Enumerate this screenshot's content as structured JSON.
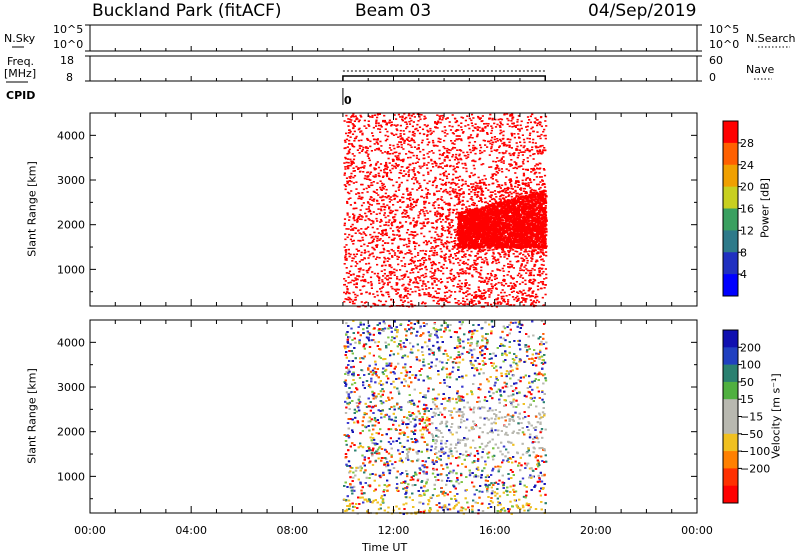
{
  "header": {
    "station": "Buckland Park (fitACF)",
    "beam": "Beam 03",
    "date": "04/Sep/2019"
  },
  "nsky": {
    "label": "N.Sky",
    "tick_top": "10^5",
    "tick_bottom": "10^0"
  },
  "nsearch": {
    "label": "N.Search",
    "tick_top": "10^5",
    "tick_bottom": "10^0"
  },
  "freq": {
    "label_line1": "Freq.",
    "label_line2": "[MHz]",
    "tick_top": "18",
    "tick_bottom": "8"
  },
  "nave": {
    "label": "Nave",
    "tick_top": "60",
    "tick_bottom": "0"
  },
  "cpid": {
    "label": "CPID",
    "value": "0"
  },
  "chart_data": [
    {
      "type": "heatmap",
      "name": "power",
      "ylabel": "Slant Range [km]",
      "yticks": [
        "1000",
        "2000",
        "3000",
        "4000"
      ],
      "ylim": [
        180,
        4500
      ],
      "xlim": [
        0,
        24
      ],
      "data_start_hour": 10,
      "data_end_hour": 18,
      "colorbar_label": "Power [dB]",
      "colorbar_ticks": [
        "4",
        "8",
        "12",
        "16",
        "20",
        "24",
        "28"
      ],
      "colorbar_colors": [
        "#0000ff",
        "#2030c0",
        "#2e7a8a",
        "#3aa060",
        "#c8d020",
        "#f0a000",
        "#ff6000",
        "#ff0000"
      ],
      "dominant_color": "#ff0000"
    },
    {
      "type": "heatmap",
      "name": "velocity",
      "ylabel": "Slant Range [km]",
      "yticks": [
        "1000",
        "2000",
        "3000",
        "4000"
      ],
      "ylim": [
        180,
        4500
      ],
      "xlim": [
        0,
        24
      ],
      "data_start_hour": 10,
      "data_end_hour": 18,
      "colorbar_label": "Velocity [m s⁻¹]",
      "colorbar_ticks": [
        "200",
        "100",
        "50",
        "15",
        "−15",
        "−50",
        "−100",
        "−200"
      ],
      "colorbar_colors": [
        "#1010b0",
        "#2040c0",
        "#2a8070",
        "#50b040",
        "#b8b8b0",
        "#b8b8b0",
        "#f0c020",
        "#ff8000",
        "#ff3000",
        "#ff0000"
      ],
      "palette": [
        "#ff0000",
        "#1414b4",
        "#3b3bd0",
        "#ff5a00",
        "#b8b8b0",
        "#7cc443",
        "#f0c020",
        "#2a8070"
      ]
    }
  ],
  "xaxis": {
    "label": "Time UT",
    "ticks": [
      "00:00",
      "04:00",
      "08:00",
      "12:00",
      "16:00",
      "20:00",
      "00:00"
    ]
  }
}
